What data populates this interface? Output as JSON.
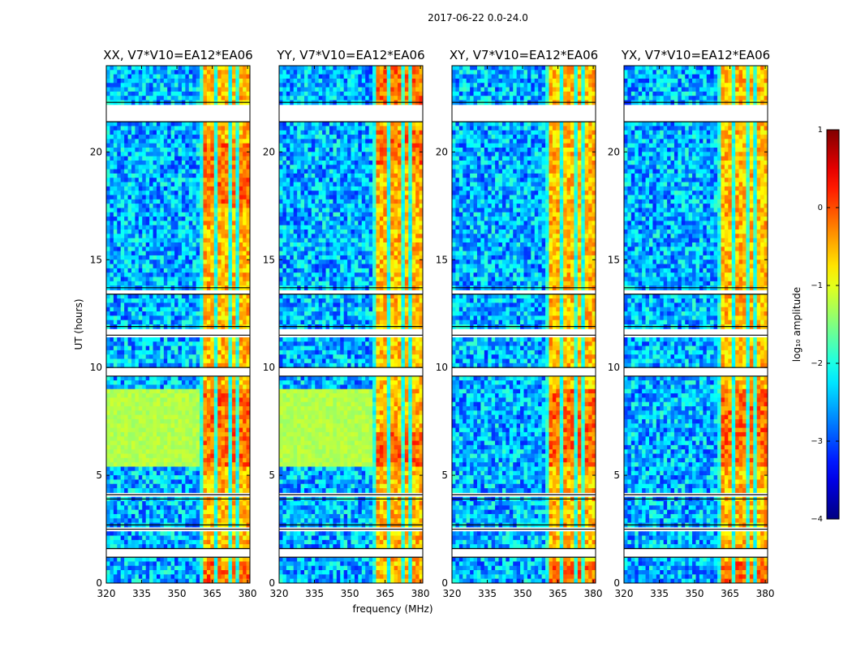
{
  "figure": {
    "suptitle": "2017-06-22 0.0-24.0",
    "xlabel": "frequency (MHz)",
    "ylabel": "UT (hours)"
  },
  "colorbar": {
    "label": "log₁₀ amplitude",
    "ticks": [
      {
        "value": 1,
        "label": "1"
      },
      {
        "value": 0,
        "label": "0"
      },
      {
        "value": -1,
        "label": "−1"
      },
      {
        "value": -2,
        "label": "−2"
      },
      {
        "value": -3,
        "label": "−3"
      },
      {
        "value": -4,
        "label": "−4"
      }
    ],
    "range": [
      -4,
      1
    ],
    "colormap": "jet"
  },
  "chart_data": [
    {
      "type": "heatmap",
      "title": "XX, V7*V10=EA12*EA06",
      "xlim": [
        320,
        381
      ],
      "ylim": [
        0,
        24
      ],
      "xticks": [
        320,
        335,
        350,
        365,
        380
      ],
      "yticks": [
        0,
        5,
        10,
        15,
        20
      ],
      "rfi_band_mhz": [
        359,
        381
      ],
      "rfi_channels_mhz": [
        361,
        367,
        373,
        376
      ],
      "flagged_ut_hours": [
        [
          21.4,
          22.3
        ],
        [
          13.4,
          13.7
        ],
        [
          11.5,
          11.9
        ],
        [
          9.6,
          10.0
        ],
        [
          3.9,
          4.1
        ],
        [
          2.5,
          2.7
        ],
        [
          1.2,
          1.6
        ]
      ],
      "strong_rfi_ut_hours": [
        [
          5.5,
          9.0
        ],
        [
          17.5,
          20.5
        ],
        [
          0,
          1.0
        ]
      ],
      "elevated_background_ut_hours": [
        [
          5.5,
          9.0
        ]
      ],
      "amplitude_range_log10": [
        -4,
        1
      ]
    },
    {
      "type": "heatmap",
      "title": "YY, V7*V10=EA12*EA06",
      "xlim": [
        320,
        381
      ],
      "ylim": [
        0,
        24
      ],
      "xticks": [
        320,
        335,
        350,
        365,
        380
      ],
      "yticks": [
        0,
        5,
        10,
        15,
        20
      ],
      "rfi_band_mhz": [
        359,
        381
      ],
      "rfi_channels_mhz": [
        361,
        367,
        373,
        376
      ],
      "flagged_ut_hours": [
        [
          21.4,
          22.3
        ],
        [
          13.4,
          13.7
        ],
        [
          11.5,
          11.9
        ],
        [
          9.6,
          10.0
        ],
        [
          3.9,
          4.1
        ],
        [
          2.5,
          2.7
        ],
        [
          1.2,
          1.6
        ]
      ],
      "strong_rfi_ut_hours": [
        [
          5.5,
          7.0
        ],
        [
          19.5,
          21.0
        ],
        [
          22.3,
          24.0
        ]
      ],
      "elevated_background_ut_hours": [
        [
          5.5,
          9.0
        ]
      ],
      "amplitude_range_log10": [
        -4,
        1
      ]
    },
    {
      "type": "heatmap",
      "title": "XY, V7*V10=EA12*EA06",
      "xlim": [
        320,
        381
      ],
      "ylim": [
        0,
        24
      ],
      "xticks": [
        320,
        335,
        350,
        365,
        380
      ],
      "yticks": [
        0,
        5,
        10,
        15,
        20
      ],
      "rfi_band_mhz": [
        359,
        381
      ],
      "rfi_channels_mhz": [
        361,
        367,
        373,
        376
      ],
      "flagged_ut_hours": [
        [
          21.4,
          22.3
        ],
        [
          13.4,
          13.7
        ],
        [
          11.5,
          11.9
        ],
        [
          9.6,
          10.0
        ],
        [
          3.9,
          4.1
        ],
        [
          2.5,
          2.7
        ],
        [
          1.2,
          1.6
        ]
      ],
      "strong_rfi_ut_hours": [
        [
          5.5,
          9.0
        ],
        [
          0,
          1.0
        ]
      ],
      "elevated_background_ut_hours": [],
      "amplitude_range_log10": [
        -4,
        1
      ]
    },
    {
      "type": "heatmap",
      "title": "YX, V7*V10=EA12*EA06",
      "xlim": [
        320,
        381
      ],
      "ylim": [
        0,
        24
      ],
      "xticks": [
        320,
        335,
        350,
        365,
        380
      ],
      "yticks": [
        0,
        5,
        10,
        15,
        20
      ],
      "rfi_band_mhz": [
        359,
        381
      ],
      "rfi_channels_mhz": [
        361,
        367,
        373,
        376
      ],
      "flagged_ut_hours": [
        [
          21.4,
          22.3
        ],
        [
          13.4,
          13.7
        ],
        [
          11.5,
          11.9
        ],
        [
          9.6,
          10.0
        ],
        [
          3.9,
          4.1
        ],
        [
          2.5,
          2.7
        ],
        [
          1.2,
          1.6
        ]
      ],
      "strong_rfi_ut_hours": [
        [
          5.5,
          9.0
        ],
        [
          0,
          1.0
        ]
      ],
      "elevated_background_ut_hours": [],
      "amplitude_range_log10": [
        -4,
        1
      ]
    }
  ]
}
